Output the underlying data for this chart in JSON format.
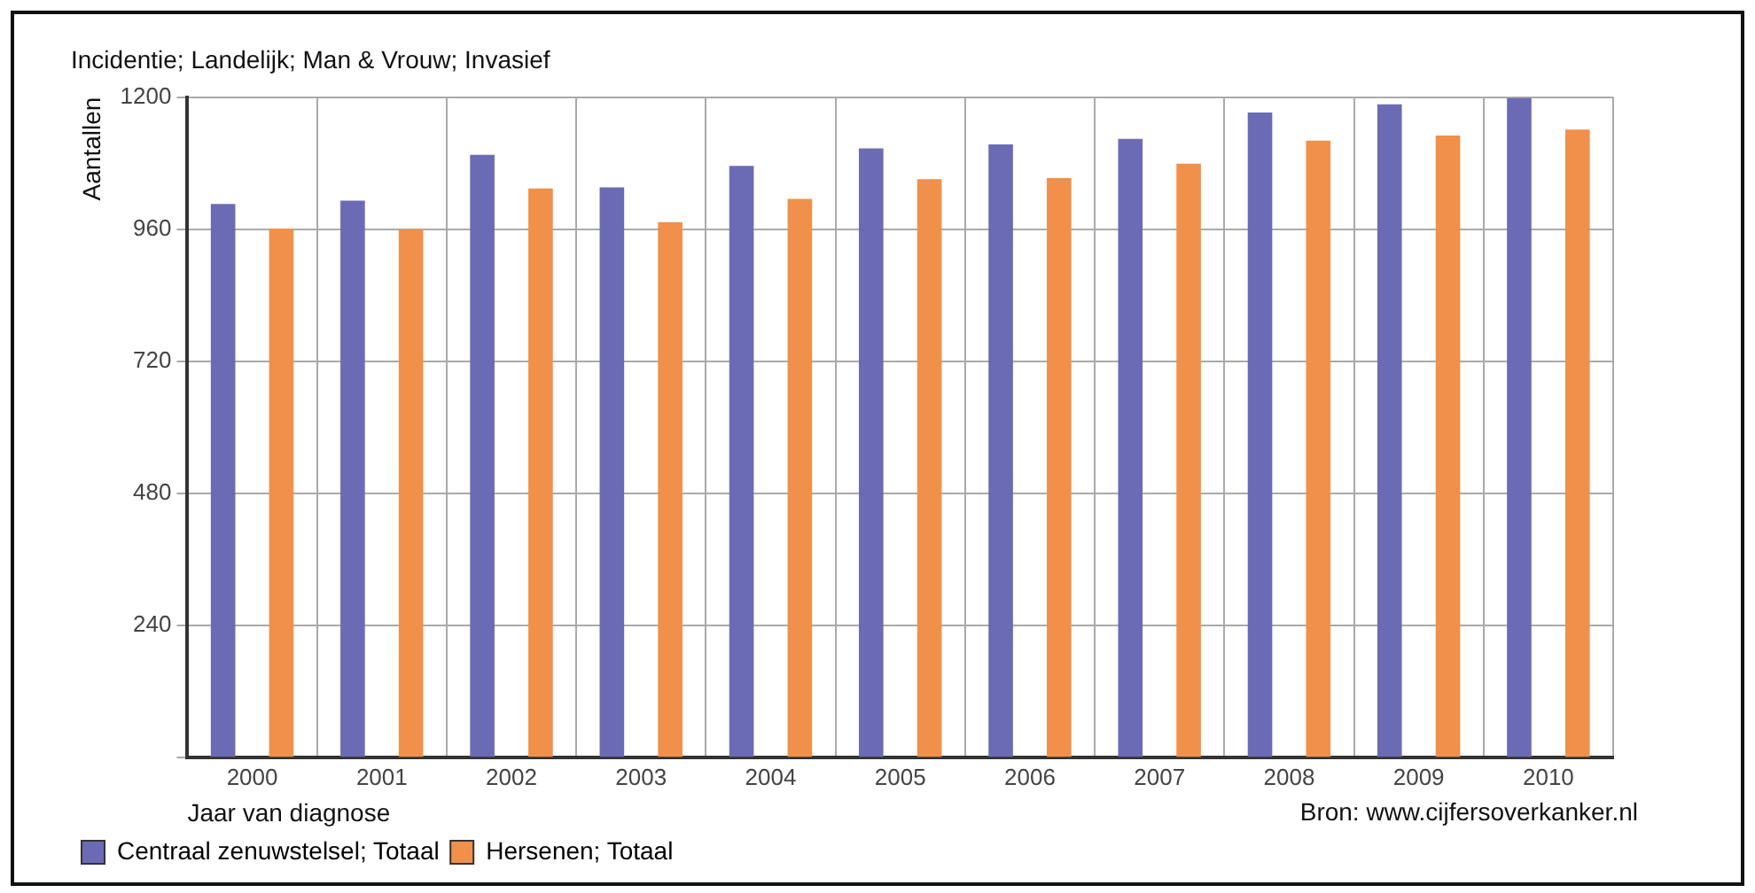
{
  "chart_data": {
    "type": "bar",
    "title": "Incidentie; Landelijk; Man & Vrouw; Invasief",
    "xlabel": "Jaar van diagnose",
    "ylabel": "Aantallen",
    "categories": [
      "2000",
      "2001",
      "2002",
      "2003",
      "2004",
      "2005",
      "2006",
      "2007",
      "2008",
      "2009",
      "2010"
    ],
    "series": [
      {
        "name": "Centraal zenuwstelsel; Totaal",
        "color": "#6b6bb5",
        "values": [
          1006,
          1012,
          1095,
          1036,
          1075,
          1107,
          1114,
          1124,
          1172,
          1187,
          1198
        ]
      },
      {
        "name": "Hersenen; Totaal",
        "color": "#f0904a",
        "values": [
          961,
          960,
          1034,
          973,
          1015,
          1051,
          1053,
          1079,
          1121,
          1130,
          1141
        ]
      }
    ],
    "ylim": [
      0,
      1200
    ],
    "yticks": [
      {
        "value": 0,
        "label": null
      },
      240,
      480,
      720,
      960,
      1200
    ],
    "grid": true,
    "legend": "bottom",
    "annotations": [
      "Bron: www.cijfersoverkanker.nl"
    ]
  }
}
